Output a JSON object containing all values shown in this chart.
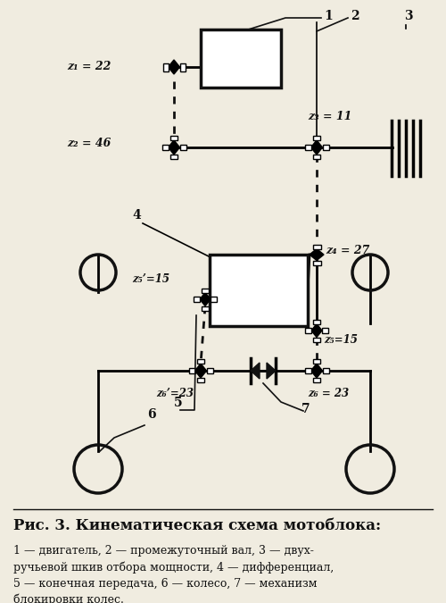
{
  "bg_color": "#f0ece0",
  "line_color": "#111111",
  "title": "Рис. 3. Кинематическая схема мотоблока:",
  "caption": "1 — двигатель, 2 — промежуточный вал, 3 — двух-\nручьевой шкив отбора мощности, 4 — дифференциал,\n5 — конечная передача, 6 — колесо, 7 — механизм\nблокировки колес.",
  "labels": {
    "z1": "z₁ = 22",
    "z2": "z₂ = 46",
    "z3": "z₃ = 11",
    "z4": "z₄ = 27",
    "z5p": "z₅’=15",
    "z5": "z₅=15",
    "z6p": "z₆’=23",
    "z6": "z₆ = 23"
  }
}
